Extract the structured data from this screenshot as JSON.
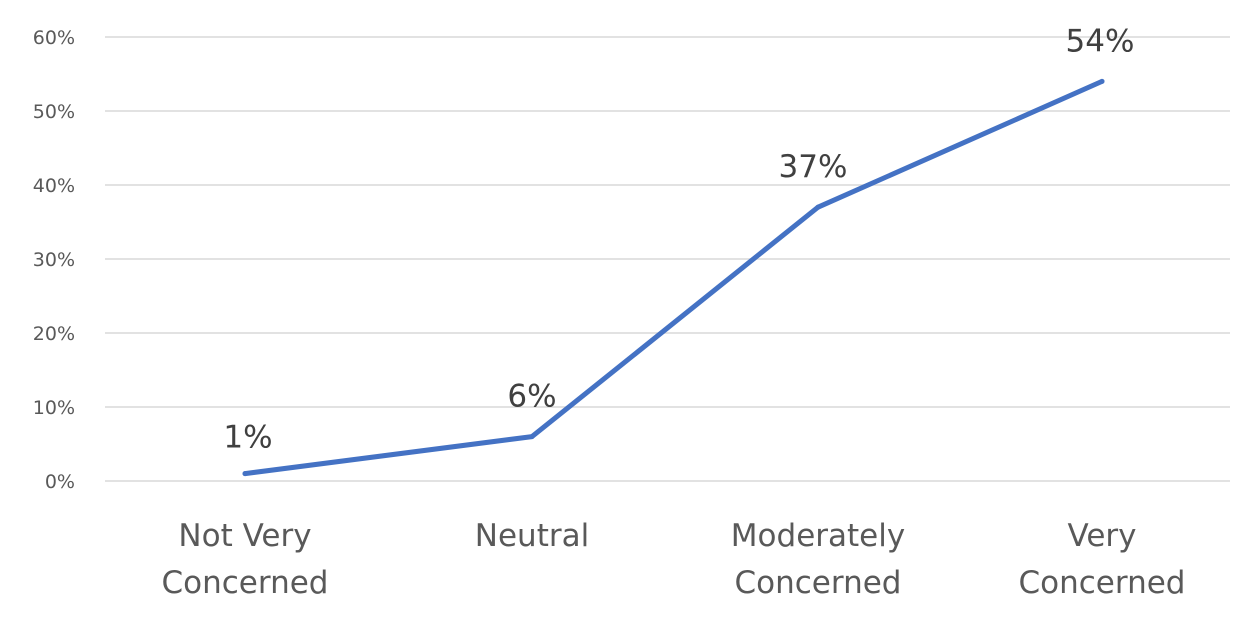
{
  "colors": {
    "series": "#4472c4",
    "grid": "#d9d9d9",
    "text": "#595959",
    "background": "#ffffff"
  },
  "chart_data": {
    "type": "line",
    "categories": [
      [
        "Not Very",
        "Concerned"
      ],
      [
        "Neutral"
      ],
      [
        "Moderately",
        "Concerned"
      ],
      [
        "Very",
        "Concerned"
      ]
    ],
    "values": [
      1,
      6,
      37,
      54
    ],
    "data_labels": [
      "1%",
      "6%",
      "37%",
      "54%"
    ],
    "y_ticks": [
      "0%",
      "10%",
      "20%",
      "30%",
      "40%",
      "50%",
      "60%"
    ],
    "ylim": [
      0,
      60
    ],
    "grid": true,
    "legend": "none"
  }
}
